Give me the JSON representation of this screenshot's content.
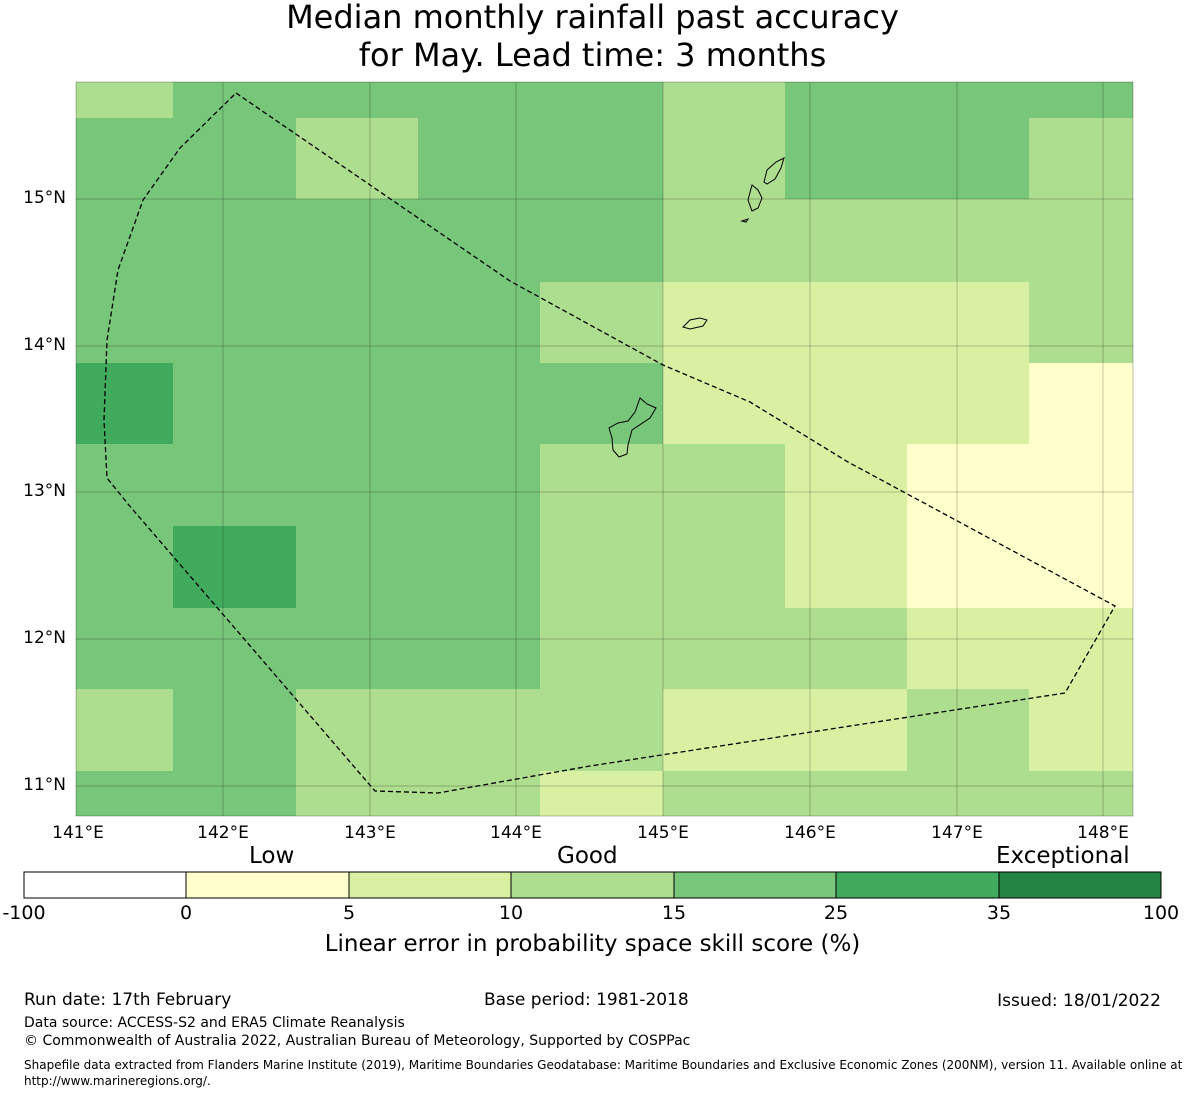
{
  "title": {
    "line1": "Median monthly rainfall past accuracy",
    "line2": "for May. Lead time: 3 months"
  },
  "map": {
    "lat_labels": [
      "15°N",
      "14°N",
      "13°N",
      "12°N",
      "11°N"
    ],
    "lon_labels": [
      "141°E",
      "142°E",
      "143°E",
      "144°E",
      "145°E",
      "146°E",
      "147°E",
      "148°E"
    ],
    "grid_colors": {
      "b0": "#ffffff",
      "b5": "#ffffcc",
      "b10": "#d9f0a3",
      "b15": "#addd8e",
      "b25": "#78c679",
      "b35": "#41ab5d",
      "b100": "#238443"
    }
  },
  "colorbar": {
    "categories": [
      "Low",
      "Good",
      "Exceptional"
    ],
    "ticks": [
      "-100",
      "0",
      "5",
      "10",
      "15",
      "25",
      "35",
      "100"
    ],
    "colors": [
      "#ffffff",
      "#ffffcc",
      "#d9f0a3",
      "#addd8e",
      "#78c679",
      "#41ab5d",
      "#238443"
    ],
    "label": "Linear error in probability space skill score (%)"
  },
  "footer": {
    "run_date": "Run date: 17th February",
    "base_period": "Base period: 1981-2018",
    "issued": "Issued: 18/01/2022",
    "data_source": "Data source: ACCESS-S2 and ERA5 Climate Reanalysis",
    "copyright": "© Commonwealth of Australia 2022, Australian Bureau of Meteorology, Supported by COSPPac",
    "shapefile": "Shapefile data extracted from Flanders Marine Institute (2019), Maritime Boundaries Geodatabase: Maritime Boundaries and Exclusive Economic Zones (200NM), version 11. Available online at http://www.marineregions.org/."
  }
}
